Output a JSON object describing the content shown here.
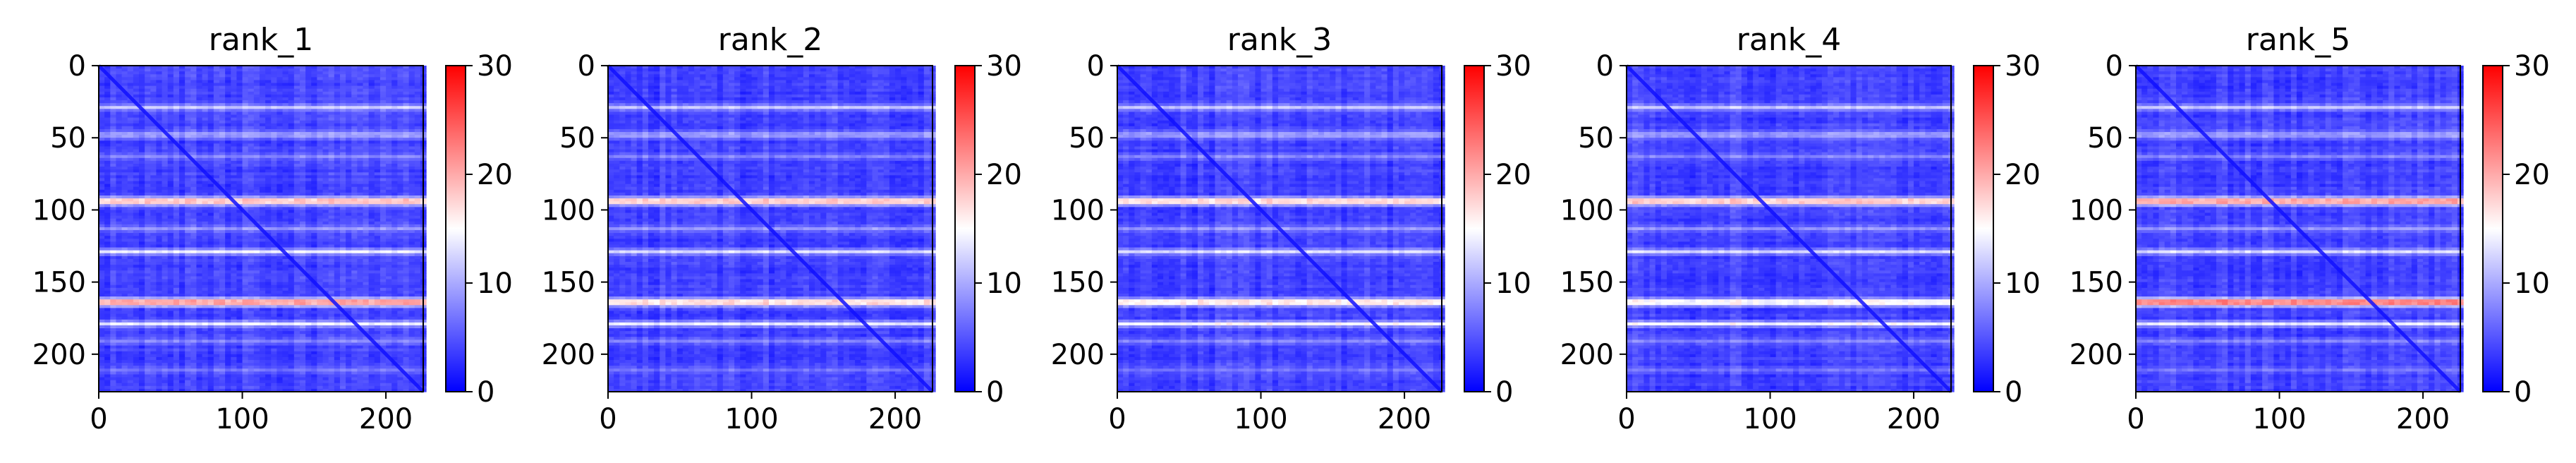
{
  "chart_data": [
    {
      "type": "heatmap",
      "title": "rank_1",
      "xlim": [
        0,
        226
      ],
      "ylim": [
        226,
        0
      ],
      "xticks": [
        0,
        100,
        200
      ],
      "yticks": [
        0,
        50,
        100,
        150,
        200
      ],
      "colorbar": {
        "min": 0,
        "max": 30,
        "ticks": [
          0,
          10,
          20,
          30
        ],
        "cmap": "bwr"
      },
      "base_value": 4,
      "diagonal_value": 1,
      "horizontal_bands": [
        {
          "row": 28,
          "value": 12
        },
        {
          "row": 47,
          "value": 9
        },
        {
          "row": 62,
          "value": 8
        },
        {
          "row": 93,
          "value": 18
        },
        {
          "row": 112,
          "value": 9
        },
        {
          "row": 128,
          "value": 14
        },
        {
          "row": 163,
          "value": 20
        },
        {
          "row": 178,
          "value": 14
        },
        {
          "row": 190,
          "value": 8
        },
        {
          "row": 210,
          "value": 7
        }
      ]
    },
    {
      "type": "heatmap",
      "title": "rank_2",
      "xlim": [
        0,
        226
      ],
      "ylim": [
        226,
        0
      ],
      "xticks": [
        0,
        100,
        200
      ],
      "yticks": [
        0,
        50,
        100,
        150,
        200
      ],
      "colorbar": {
        "min": 0,
        "max": 30,
        "ticks": [
          0,
          10,
          20,
          30
        ],
        "cmap": "bwr"
      },
      "base_value": 4,
      "diagonal_value": 1,
      "horizontal_bands": [
        {
          "row": 28,
          "value": 12
        },
        {
          "row": 47,
          "value": 9
        },
        {
          "row": 62,
          "value": 8
        },
        {
          "row": 93,
          "value": 18
        },
        {
          "row": 112,
          "value": 9
        },
        {
          "row": 128,
          "value": 13
        },
        {
          "row": 163,
          "value": 17
        },
        {
          "row": 178,
          "value": 14
        },
        {
          "row": 190,
          "value": 8
        },
        {
          "row": 210,
          "value": 7
        }
      ]
    },
    {
      "type": "heatmap",
      "title": "rank_3",
      "xlim": [
        0,
        226
      ],
      "ylim": [
        226,
        0
      ],
      "xticks": [
        0,
        100,
        200
      ],
      "yticks": [
        0,
        50,
        100,
        150,
        200
      ],
      "colorbar": {
        "min": 0,
        "max": 30,
        "ticks": [
          0,
          10,
          20,
          30
        ],
        "cmap": "bwr"
      },
      "base_value": 4,
      "diagonal_value": 1,
      "horizontal_bands": [
        {
          "row": 28,
          "value": 12
        },
        {
          "row": 47,
          "value": 9
        },
        {
          "row": 62,
          "value": 8
        },
        {
          "row": 93,
          "value": 17
        },
        {
          "row": 112,
          "value": 9
        },
        {
          "row": 128,
          "value": 13
        },
        {
          "row": 163,
          "value": 16
        },
        {
          "row": 178,
          "value": 15
        },
        {
          "row": 190,
          "value": 8
        },
        {
          "row": 210,
          "value": 7
        }
      ]
    },
    {
      "type": "heatmap",
      "title": "rank_4",
      "xlim": [
        0,
        226
      ],
      "ylim": [
        226,
        0
      ],
      "xticks": [
        0,
        100,
        200
      ],
      "yticks": [
        0,
        50,
        100,
        150,
        200
      ],
      "colorbar": {
        "min": 0,
        "max": 30,
        "ticks": [
          0,
          10,
          20,
          30
        ],
        "cmap": "bwr"
      },
      "base_value": 4,
      "diagonal_value": 1,
      "horizontal_bands": [
        {
          "row": 28,
          "value": 12
        },
        {
          "row": 47,
          "value": 9
        },
        {
          "row": 62,
          "value": 8
        },
        {
          "row": 93,
          "value": 18
        },
        {
          "row": 112,
          "value": 9
        },
        {
          "row": 128,
          "value": 13
        },
        {
          "row": 163,
          "value": 15
        },
        {
          "row": 178,
          "value": 15
        },
        {
          "row": 190,
          "value": 8
        },
        {
          "row": 210,
          "value": 7
        }
      ]
    },
    {
      "type": "heatmap",
      "title": "rank_5",
      "xlim": [
        0,
        226
      ],
      "ylim": [
        226,
        0
      ],
      "xticks": [
        0,
        100,
        200
      ],
      "yticks": [
        0,
        50,
        100,
        150,
        200
      ],
      "colorbar": {
        "min": 0,
        "max": 30,
        "ticks": [
          0,
          10,
          20,
          30
        ],
        "cmap": "bwr"
      },
      "base_value": 4,
      "diagonal_value": 1,
      "horizontal_bands": [
        {
          "row": 28,
          "value": 12
        },
        {
          "row": 47,
          "value": 9
        },
        {
          "row": 62,
          "value": 8
        },
        {
          "row": 93,
          "value": 20
        },
        {
          "row": 112,
          "value": 9
        },
        {
          "row": 128,
          "value": 13
        },
        {
          "row": 163,
          "value": 22
        },
        {
          "row": 178,
          "value": 14
        },
        {
          "row": 190,
          "value": 8
        },
        {
          "row": 210,
          "value": 7
        }
      ]
    }
  ]
}
